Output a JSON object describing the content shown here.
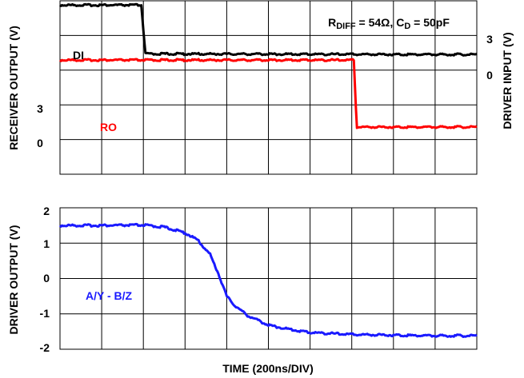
{
  "chart_data": [
    {
      "type": "line",
      "xlabel": "",
      "x_divisions": 10,
      "annotation": {
        "base": "R",
        "sub1": "DIFF",
        "mid": " = 54Ω, C",
        "sub2": "D",
        "end": " = 50pF"
      },
      "left_axis": {
        "label": "RECEIVER OUTPUT (V)",
        "ticks": [
          "3",
          "0"
        ],
        "ylim": [
          -2.2,
          5.7
        ]
      },
      "right_axis": {
        "label": "DRIVER INPUT (V)",
        "ticks": [
          "3",
          "0"
        ],
        "ylim": [
          -8.3,
          3.8
        ]
      },
      "series": [
        {
          "name": "DI",
          "axis": "right",
          "color": "#000000",
          "x": [
            0,
            1.95,
            2.05,
            10
          ],
          "y": [
            3.5,
            3.5,
            0.1,
            0.05
          ]
        },
        {
          "name": "RO",
          "axis": "left",
          "color": "#ff0000",
          "x": [
            0,
            7.05,
            7.12,
            10
          ],
          "y": [
            3.0,
            3.0,
            -0.05,
            -0.05
          ]
        }
      ]
    },
    {
      "type": "line",
      "xlabel": "TIME (200ns/DIV)",
      "x_divisions": 10,
      "ylabel": "DRIVER OUTPUT (V)",
      "ylim": [
        -2.1,
        2.3
      ],
      "yticks": [
        "2",
        "1",
        "0",
        "-1",
        "-2"
      ],
      "series": [
        {
          "name": "A/Y - B/Z",
          "color": "#1a1aff",
          "x": [
            0,
            1,
            2,
            2.5,
            3.0,
            3.3,
            3.6,
            3.8,
            4.0,
            4.2,
            4.5,
            5.0,
            5.5,
            6.0,
            7.0,
            8.0,
            9.0,
            10.0
          ],
          "y": [
            1.75,
            1.75,
            1.76,
            1.7,
            1.52,
            1.3,
            0.85,
            0.25,
            -0.45,
            -0.75,
            -1.05,
            -1.35,
            -1.48,
            -1.58,
            -1.64,
            -1.66,
            -1.68,
            -1.68
          ]
        }
      ]
    }
  ]
}
